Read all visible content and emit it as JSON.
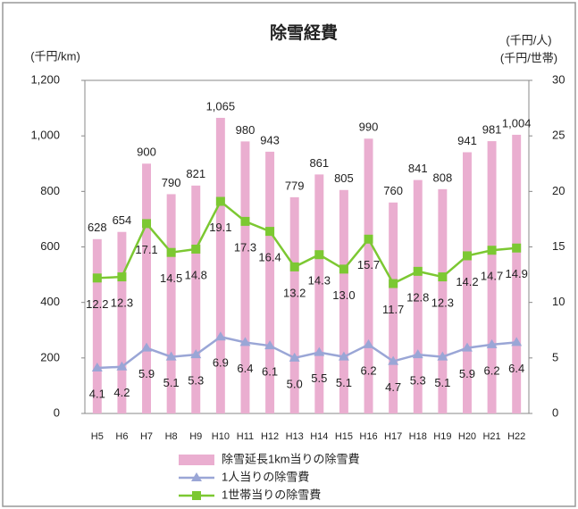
{
  "chart_data": {
    "type": "bar",
    "title": "除雪経費",
    "ylabel": "(千円/km)",
    "y2label": [
      "(千円/人)",
      "(千円/世帯)"
    ],
    "categories": [
      "H5",
      "H6",
      "H7",
      "H8",
      "H9",
      "H10",
      "H11",
      "H12",
      "H13",
      "H14",
      "H15",
      "H16",
      "H17",
      "H18",
      "H19",
      "H20",
      "H21",
      "H22"
    ],
    "ylim": [
      0,
      1200
    ],
    "yticks": [
      0,
      200,
      400,
      600,
      800,
      {
        "value": 1000,
        "label": "1,000"
      },
      {
        "value": 1200,
        "label": "1,200"
      }
    ],
    "y2lim": [
      0,
      30
    ],
    "y2ticks": [
      0,
      5,
      10,
      15,
      20,
      25,
      30
    ],
    "series": [
      {
        "name": "除雪延長1km当りの除雪費",
        "type": "bar",
        "color": "#eaaed0",
        "values": [
          628,
          654,
          900,
          790,
          821,
          1065,
          980,
          943,
          779,
          861,
          805,
          990,
          760,
          841,
          808,
          941,
          981,
          1004
        ],
        "value_labels": [
          "628",
          "654",
          "900",
          "790",
          "821",
          "1,065",
          "980",
          "943",
          "779",
          "861",
          "805",
          "990",
          "760",
          "841",
          "808",
          "941",
          "981",
          "1,004"
        ]
      },
      {
        "name": "1人当りの除雪費",
        "type": "line",
        "axis": "y2",
        "color": "#9aa6d6",
        "marker": "triangle",
        "values": [
          4.1,
          4.2,
          5.9,
          5.1,
          5.3,
          6.9,
          6.4,
          6.1,
          5.0,
          5.5,
          5.1,
          6.2,
          4.7,
          5.3,
          5.1,
          5.9,
          6.2,
          6.4
        ],
        "value_labels": [
          "4.1",
          "4.2",
          "5.9",
          "5.1",
          "5.3",
          "6.9",
          "6.4",
          "6.1",
          "5.0",
          "5.5",
          "5.1",
          "6.2",
          "4.7",
          "5.3",
          "5.1",
          "5.9",
          "6.2",
          "6.4"
        ]
      },
      {
        "name": "1世帯当りの除雪費",
        "type": "line",
        "axis": "y2",
        "color": "#7cc832",
        "marker": "square",
        "values": [
          12.2,
          12.3,
          17.1,
          14.5,
          14.8,
          19.1,
          17.3,
          16.4,
          13.2,
          14.3,
          13.0,
          15.7,
          11.7,
          12.8,
          12.3,
          14.2,
          14.7,
          14.9
        ],
        "value_labels": [
          "12.2",
          "12.3",
          "17.1",
          "14.5",
          "14.8",
          "19.1",
          "17.3",
          "16.4",
          "13.2",
          "14.3",
          "13.0",
          "15.7",
          "11.7",
          "12.8",
          "12.3",
          "14.2",
          "14.7",
          "14.9"
        ]
      }
    ]
  }
}
